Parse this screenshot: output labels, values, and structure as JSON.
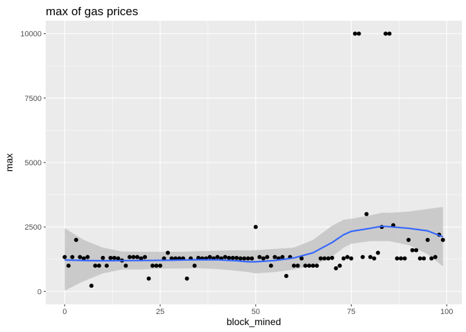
{
  "chart_data": {
    "type": "scatter",
    "title": "max of gas prices",
    "xlabel": "block_mined",
    "ylabel": "max",
    "xlim": [
      -4.95,
      103.95
    ],
    "ylim": [
      -500,
      10500
    ],
    "x_ticks": [
      0,
      25,
      50,
      75,
      100
    ],
    "y_ticks": [
      0,
      2500,
      5000,
      7500,
      10000
    ],
    "x_tick_labels": [
      "0",
      "25",
      "50",
      "75",
      "100"
    ],
    "y_tick_labels": [
      "0",
      "2500",
      "5000",
      "7500",
      "10000"
    ],
    "grid": true,
    "legend": "none",
    "colors": {
      "panel": "#ebebeb",
      "grid_major": "#ffffff",
      "points": "#000000",
      "smooth_line": "#3366ff",
      "confidence_band": "#c4c4c4"
    },
    "points": [
      {
        "x": 0,
        "y": 1333
      },
      {
        "x": 1,
        "y": 1000
      },
      {
        "x": 2,
        "y": 1333
      },
      {
        "x": 3,
        "y": 2000
      },
      {
        "x": 4,
        "y": 1333
      },
      {
        "x": 5,
        "y": 1280
      },
      {
        "x": 6,
        "y": 1333
      },
      {
        "x": 7,
        "y": 220
      },
      {
        "x": 8,
        "y": 1000
      },
      {
        "x": 9,
        "y": 1000
      },
      {
        "x": 10,
        "y": 1300
      },
      {
        "x": 11,
        "y": 1000
      },
      {
        "x": 12,
        "y": 1300
      },
      {
        "x": 13,
        "y": 1300
      },
      {
        "x": 14,
        "y": 1280
      },
      {
        "x": 15,
        "y": 1200
      },
      {
        "x": 16,
        "y": 1000
      },
      {
        "x": 17,
        "y": 1333
      },
      {
        "x": 18,
        "y": 1333
      },
      {
        "x": 19,
        "y": 1333
      },
      {
        "x": 20,
        "y": 1280
      },
      {
        "x": 21,
        "y": 1333
      },
      {
        "x": 22,
        "y": 500
      },
      {
        "x": 23,
        "y": 1000
      },
      {
        "x": 24,
        "y": 1000
      },
      {
        "x": 25,
        "y": 1000
      },
      {
        "x": 26,
        "y": 1280
      },
      {
        "x": 27,
        "y": 1500
      },
      {
        "x": 28,
        "y": 1280
      },
      {
        "x": 29,
        "y": 1280
      },
      {
        "x": 30,
        "y": 1280
      },
      {
        "x": 31,
        "y": 1280
      },
      {
        "x": 32,
        "y": 500
      },
      {
        "x": 33,
        "y": 1280
      },
      {
        "x": 34,
        "y": 1000
      },
      {
        "x": 35,
        "y": 1300
      },
      {
        "x": 36,
        "y": 1280
      },
      {
        "x": 37,
        "y": 1280
      },
      {
        "x": 38,
        "y": 1333
      },
      {
        "x": 39,
        "y": 1280
      },
      {
        "x": 40,
        "y": 1333
      },
      {
        "x": 41,
        "y": 1280
      },
      {
        "x": 42,
        "y": 1333
      },
      {
        "x": 43,
        "y": 1300
      },
      {
        "x": 44,
        "y": 1300
      },
      {
        "x": 45,
        "y": 1300
      },
      {
        "x": 46,
        "y": 1280
      },
      {
        "x": 47,
        "y": 1280
      },
      {
        "x": 48,
        "y": 1280
      },
      {
        "x": 49,
        "y": 1280
      },
      {
        "x": 50,
        "y": 2500
      },
      {
        "x": 51,
        "y": 1333
      },
      {
        "x": 52,
        "y": 1280
      },
      {
        "x": 53,
        "y": 1333
      },
      {
        "x": 54,
        "y": 1000
      },
      {
        "x": 55,
        "y": 1333
      },
      {
        "x": 56,
        "y": 1280
      },
      {
        "x": 57,
        "y": 1333
      },
      {
        "x": 58,
        "y": 600
      },
      {
        "x": 59,
        "y": 1333
      },
      {
        "x": 60,
        "y": 1000
      },
      {
        "x": 61,
        "y": 1000
      },
      {
        "x": 62,
        "y": 1280
      },
      {
        "x": 63,
        "y": 1000
      },
      {
        "x": 64,
        "y": 1000
      },
      {
        "x": 65,
        "y": 1000
      },
      {
        "x": 66,
        "y": 1000
      },
      {
        "x": 67,
        "y": 1280
      },
      {
        "x": 68,
        "y": 1280
      },
      {
        "x": 69,
        "y": 1280
      },
      {
        "x": 70,
        "y": 1300
      },
      {
        "x": 71,
        "y": 900
      },
      {
        "x": 72,
        "y": 1000
      },
      {
        "x": 73,
        "y": 1280
      },
      {
        "x": 74,
        "y": 1333
      },
      {
        "x": 75,
        "y": 1280
      },
      {
        "x": 76,
        "y": 10000
      },
      {
        "x": 77,
        "y": 10000
      },
      {
        "x": 78,
        "y": 1333
      },
      {
        "x": 79,
        "y": 3000
      },
      {
        "x": 80,
        "y": 1333
      },
      {
        "x": 81,
        "y": 1280
      },
      {
        "x": 82,
        "y": 1500
      },
      {
        "x": 83,
        "y": 2500
      },
      {
        "x": 84,
        "y": 10000
      },
      {
        "x": 85,
        "y": 10000
      },
      {
        "x": 86,
        "y": 2570
      },
      {
        "x": 87,
        "y": 1280
      },
      {
        "x": 88,
        "y": 1280
      },
      {
        "x": 89,
        "y": 1280
      },
      {
        "x": 90,
        "y": 2000
      },
      {
        "x": 91,
        "y": 1600
      },
      {
        "x": 92,
        "y": 1600
      },
      {
        "x": 93,
        "y": 1280
      },
      {
        "x": 94,
        "y": 1280
      },
      {
        "x": 95,
        "y": 2000
      },
      {
        "x": 96,
        "y": 1280
      },
      {
        "x": 97,
        "y": 1333
      },
      {
        "x": 98,
        "y": 2200
      },
      {
        "x": 99,
        "y": 2000
      }
    ],
    "smooth": {
      "x": [
        0,
        5,
        10,
        15,
        20,
        25,
        30,
        35,
        40,
        45,
        48,
        50,
        55,
        60,
        65,
        70,
        73,
        75,
        80,
        83,
        85,
        90,
        95,
        99
      ],
      "y": [
        1220,
        1200,
        1190,
        1195,
        1200,
        1205,
        1215,
        1230,
        1225,
        1190,
        1150,
        1150,
        1200,
        1300,
        1500,
        1900,
        2200,
        2330,
        2450,
        2530,
        2510,
        2450,
        2350,
        2120
      ],
      "lower": [
        30,
        400,
        700,
        850,
        850,
        880,
        890,
        900,
        870,
        800,
        750,
        700,
        750,
        850,
        1000,
        1350,
        1700,
        1850,
        1950,
        1950,
        1950,
        1800,
        1450,
        970
      ],
      "upper": [
        2450,
        2000,
        1700,
        1550,
        1540,
        1540,
        1540,
        1560,
        1580,
        1600,
        1590,
        1600,
        1650,
        1700,
        2000,
        2550,
        2780,
        2820,
        2950,
        3050,
        3050,
        3100,
        3200,
        3280
      ]
    }
  }
}
